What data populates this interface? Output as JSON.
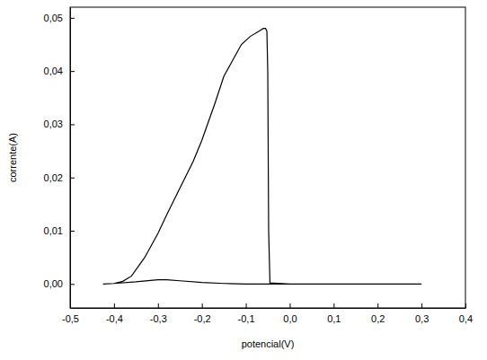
{
  "chart_data": {
    "type": "line",
    "x_label": "potencial(V)",
    "y_label": "corrente(A)",
    "color": "#000000",
    "x": [
      -0.425,
      -0.4,
      -0.35,
      -0.3,
      -0.28,
      -0.25,
      -0.2,
      -0.15,
      -0.1,
      -0.05,
      0.0,
      0.1,
      0.2,
      0.3,
      0.2,
      0.1,
      0.0,
      -0.045,
      -0.048,
      -0.05,
      -0.052,
      -0.055,
      -0.06,
      -0.07,
      -0.09,
      -0.11,
      -0.13,
      -0.15,
      -0.17,
      -0.2,
      -0.22,
      -0.25,
      -0.28,
      -0.3,
      -0.33,
      -0.36,
      -0.38,
      -0.4,
      -0.425
    ],
    "values": [
      0.0,
      0.0001,
      0.0004,
      0.0008,
      0.0008,
      0.0006,
      0.0003,
      0.0001,
      0.0,
      0.0,
      0.0,
      0.0,
      0.0,
      0.0,
      0.0,
      0.0,
      0.0,
      0.0002,
      0.01,
      0.04,
      0.0475,
      0.048,
      0.048,
      0.0475,
      0.0465,
      0.045,
      0.042,
      0.039,
      0.034,
      0.027,
      0.023,
      0.018,
      0.013,
      0.0095,
      0.005,
      0.0015,
      0.0005,
      0.0001,
      0.0
    ],
    "xlim": [
      -0.5,
      0.4
    ],
    "ylim": [
      -0.0045,
      0.052
    ],
    "xticks": [
      {
        "value": -0.5,
        "label": "-0,5"
      },
      {
        "value": -0.4,
        "label": "-0,4"
      },
      {
        "value": -0.3,
        "label": "-0,3"
      },
      {
        "value": -0.2,
        "label": "-0,2"
      },
      {
        "value": -0.1,
        "label": "-0,1"
      },
      {
        "value": 0.0,
        "label": "0,0"
      },
      {
        "value": 0.1,
        "label": "0,1"
      },
      {
        "value": 0.2,
        "label": "0,2"
      },
      {
        "value": 0.3,
        "label": "0,3"
      },
      {
        "value": 0.4,
        "label": "0,4"
      }
    ],
    "yticks": [
      {
        "value": 0.0,
        "label": "0,00"
      },
      {
        "value": 0.01,
        "label": "0,01"
      },
      {
        "value": 0.02,
        "label": "0,02"
      },
      {
        "value": 0.03,
        "label": "0,03"
      },
      {
        "value": 0.04,
        "label": "0,04"
      },
      {
        "value": 0.05,
        "label": "0,05"
      }
    ],
    "grid": false
  }
}
